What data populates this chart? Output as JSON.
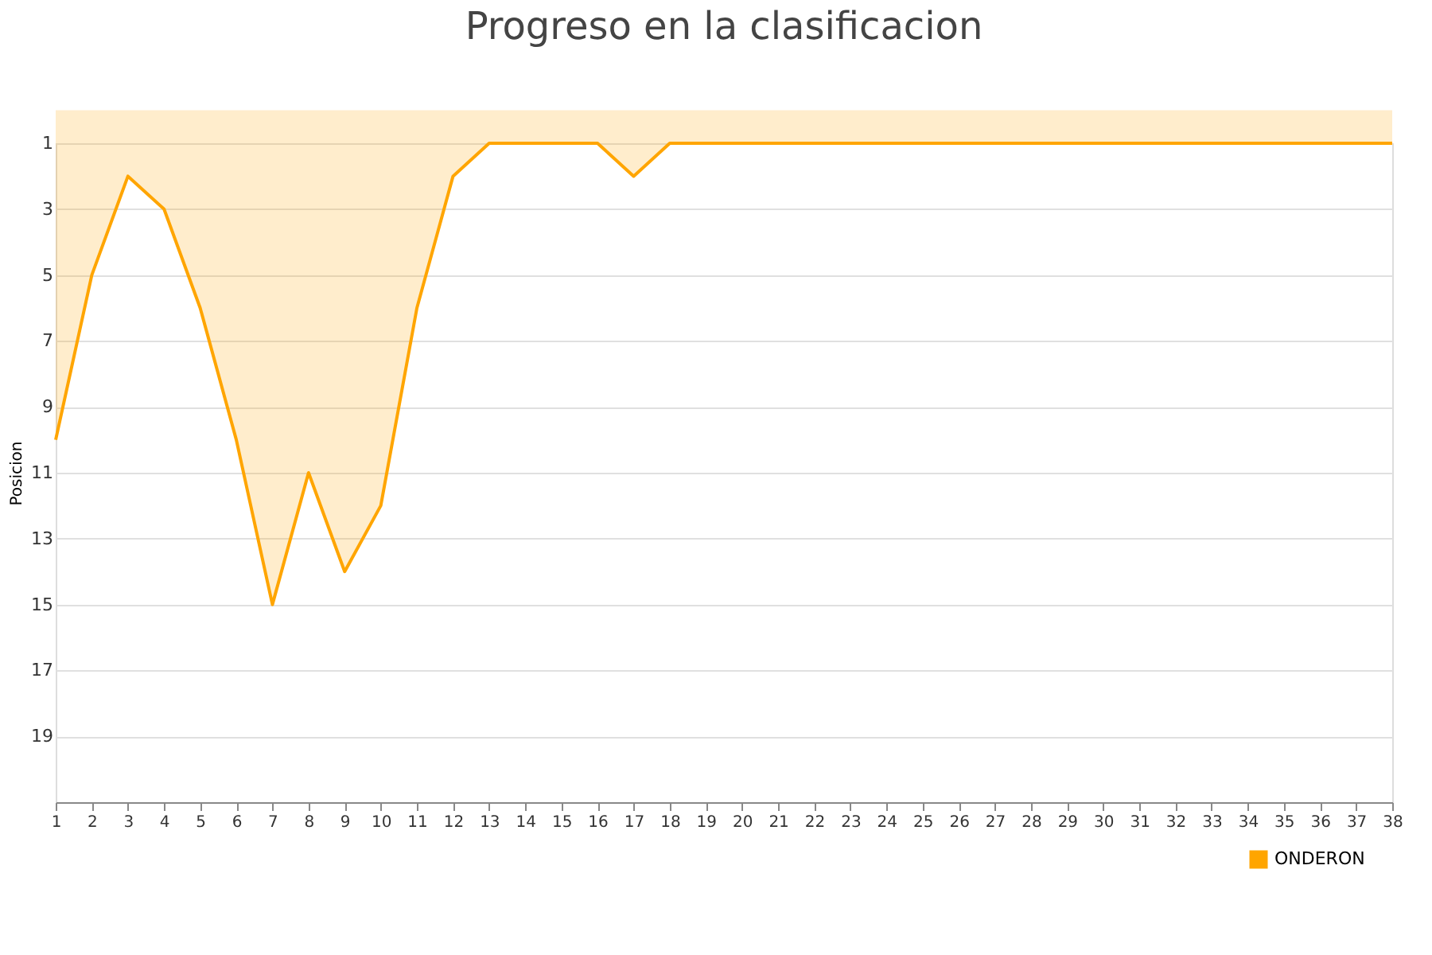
{
  "chart_data": {
    "type": "area",
    "title": "Progreso en la clasificacion",
    "ylabel": "Posicion",
    "x": [
      1,
      2,
      3,
      4,
      5,
      6,
      7,
      8,
      9,
      10,
      11,
      12,
      13,
      14,
      15,
      16,
      17,
      18,
      19,
      20,
      21,
      22,
      23,
      24,
      25,
      26,
      27,
      28,
      29,
      30,
      31,
      32,
      33,
      34,
      35,
      36,
      37,
      38
    ],
    "series": [
      {
        "name": "ONDERON",
        "color": "#ffa500",
        "values": [
          10,
          5,
          2,
          3,
          6,
          10,
          15,
          11,
          14,
          12,
          6,
          2,
          1,
          1,
          1,
          1,
          2,
          1,
          1,
          1,
          1,
          1,
          1,
          1,
          1,
          1,
          1,
          1,
          1,
          1,
          1,
          1,
          1,
          1,
          1,
          1,
          1,
          1
        ]
      }
    ],
    "xlim": [
      1,
      38
    ],
    "xticks": [
      1,
      2,
      3,
      4,
      5,
      6,
      7,
      8,
      9,
      10,
      11,
      12,
      13,
      14,
      15,
      16,
      17,
      18,
      19,
      20,
      21,
      22,
      23,
      24,
      25,
      26,
      27,
      28,
      29,
      30,
      31,
      32,
      33,
      34,
      35,
      36,
      37,
      38
    ],
    "ylim": [
      21,
      1
    ],
    "yticks": [
      1,
      3,
      5,
      7,
      9,
      11,
      13,
      15,
      17,
      19
    ],
    "grid": "y",
    "legend": "bottom right",
    "marker": "none",
    "line_style": "solid"
  }
}
